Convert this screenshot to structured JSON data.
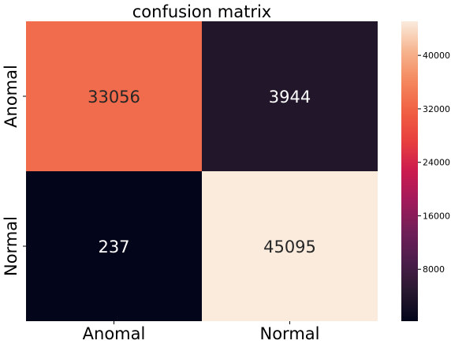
{
  "chart_data": {
    "type": "heatmap",
    "title": "confusion matrix",
    "xlabel": "",
    "ylabel": "",
    "row_labels": [
      "Anomal",
      "Normal"
    ],
    "col_labels": [
      "Anomal",
      "Normal"
    ],
    "values": [
      [
        33056,
        3944
      ],
      [
        237,
        45095
      ]
    ],
    "cell_labels": [
      [
        "33056",
        "3944"
      ],
      [
        "237",
        "45095"
      ]
    ],
    "colorbar": {
      "vmin": 237,
      "vmax": 45095,
      "ticks": [
        8000,
        16000,
        24000,
        32000,
        40000
      ],
      "tick_labels": [
        "8000",
        "16000",
        "24000",
        "32000",
        "40000"
      ]
    },
    "colormap": "rocket",
    "text_colors": {
      "light": "#ffffff",
      "dark": "#262626"
    }
  }
}
